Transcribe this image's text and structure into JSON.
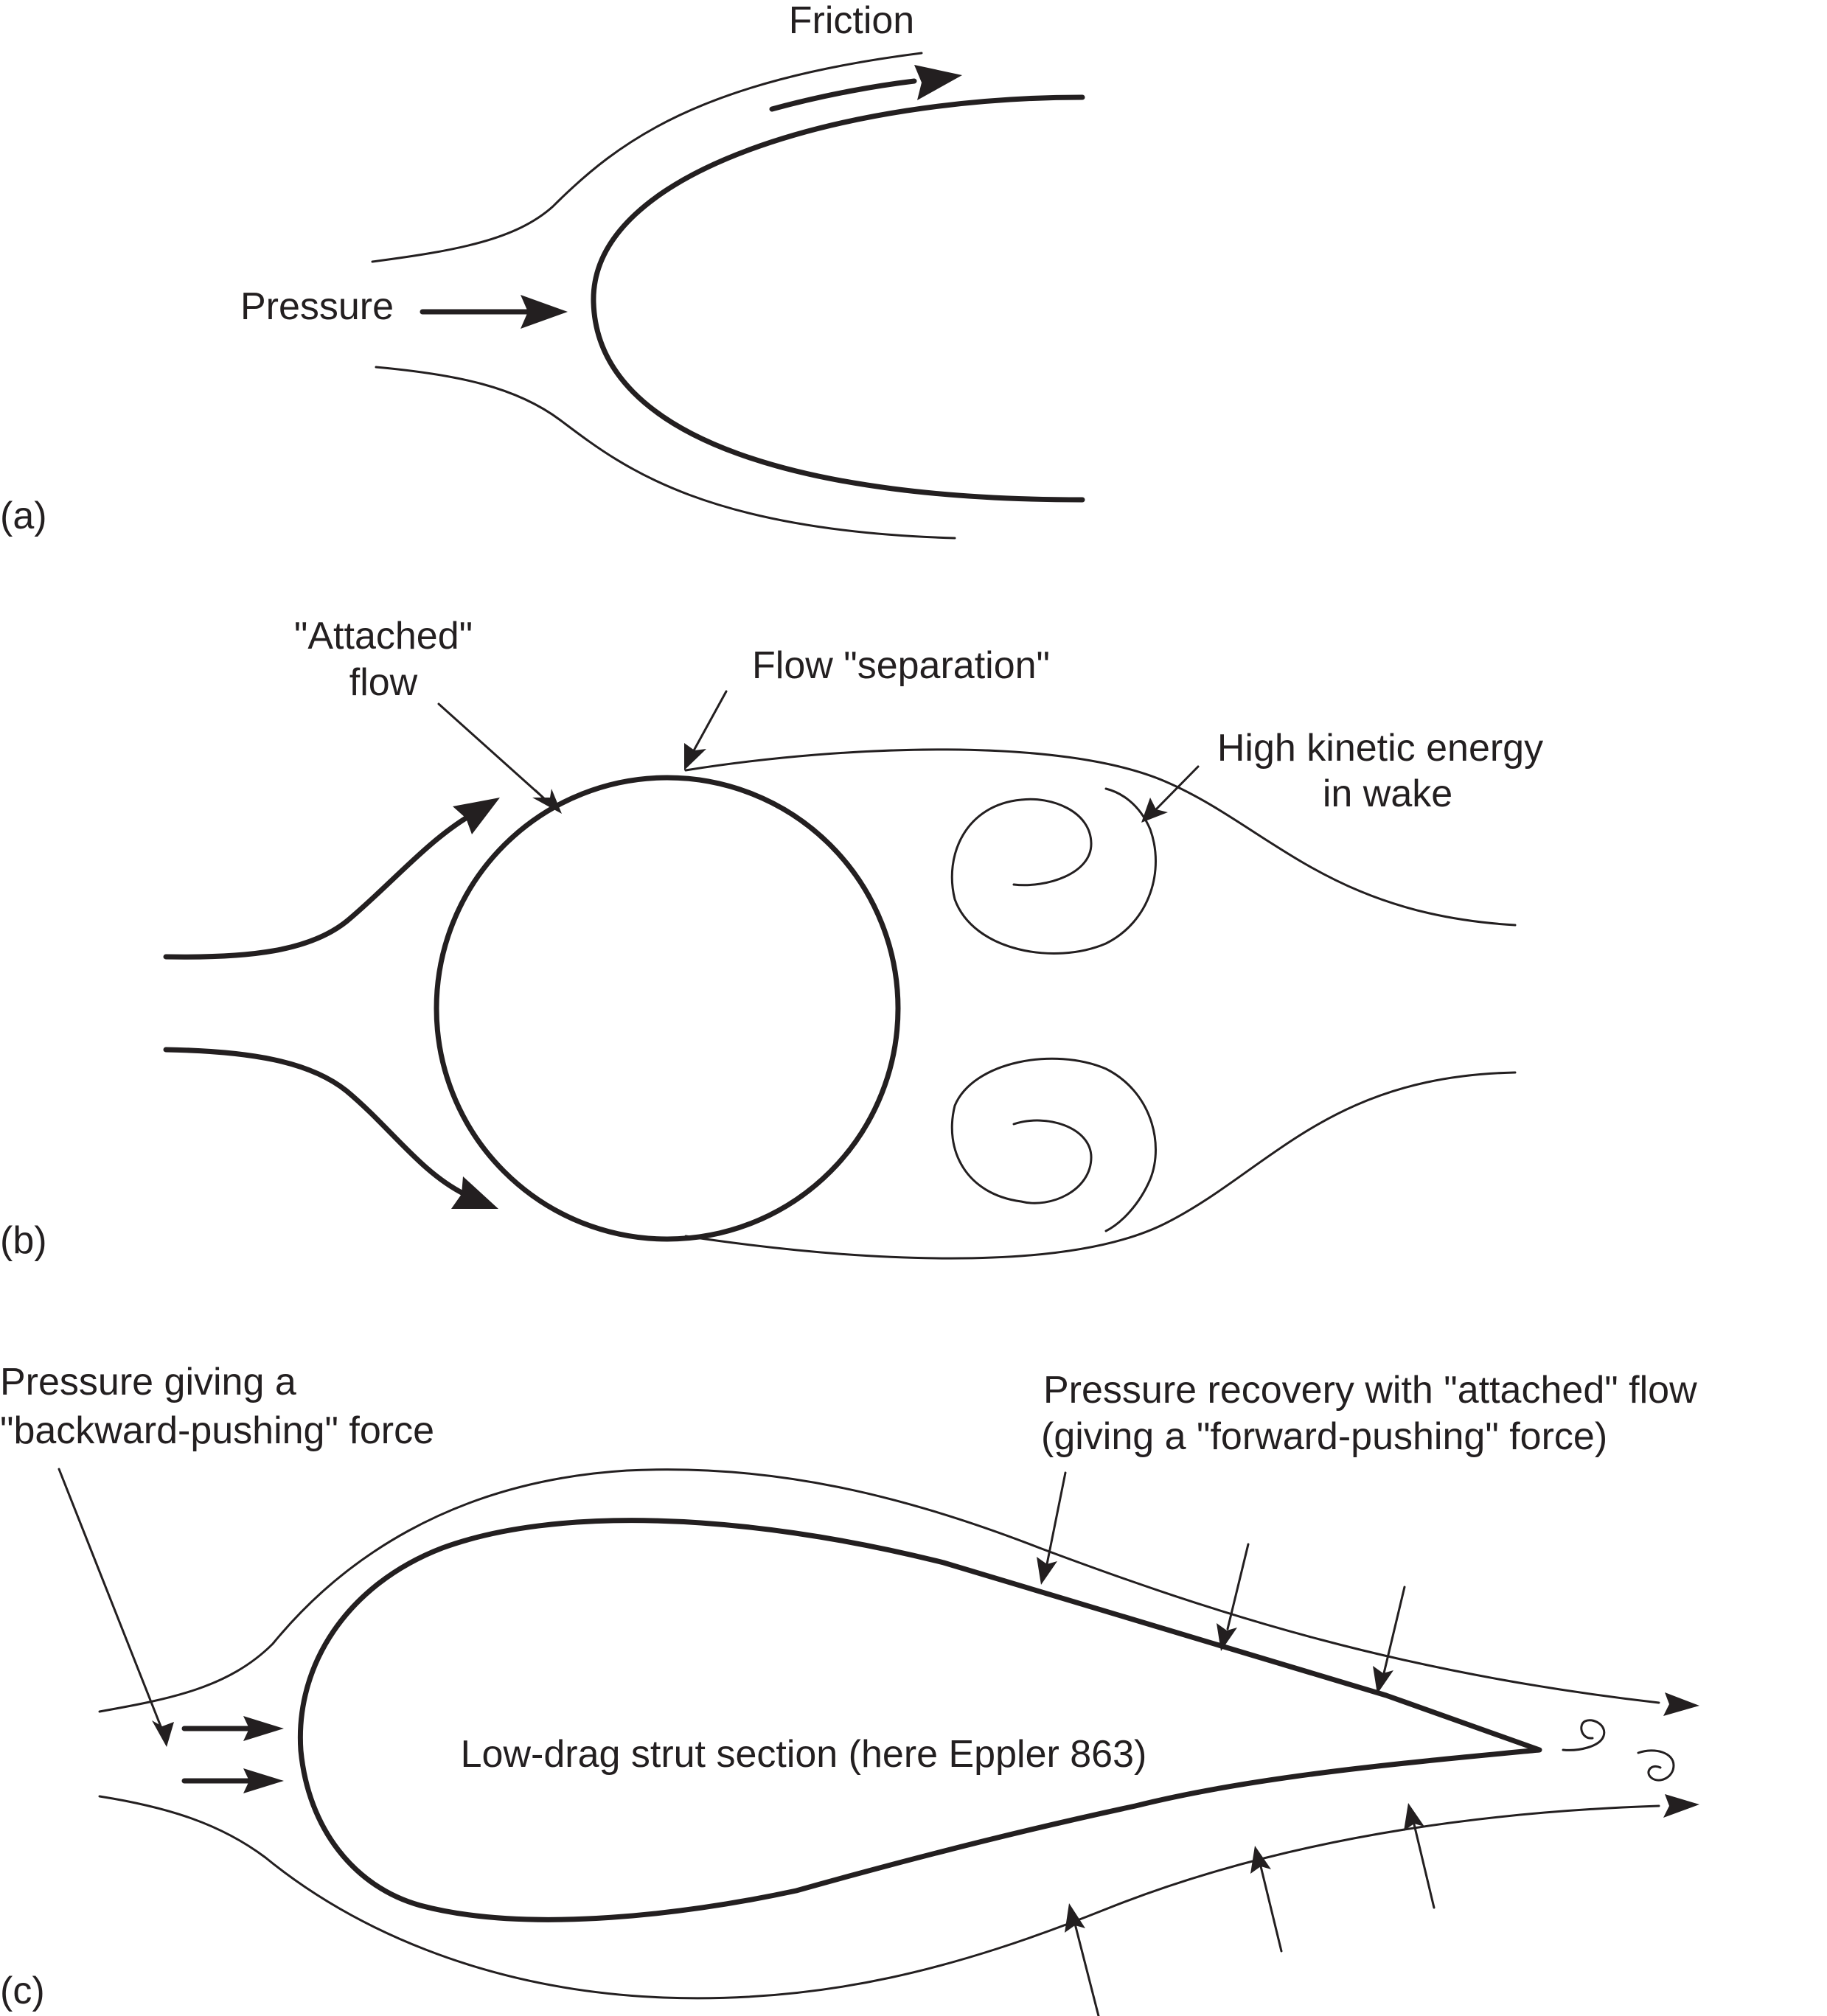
{
  "panels": {
    "a": {
      "tag": "(a)",
      "friction_label": "Friction",
      "pressure_label": "Pressure"
    },
    "b": {
      "tag": "(b)",
      "attached_label": [
        "\"Attached\"",
        "flow"
      ],
      "separation_label": "Flow \"separation\"",
      "wake_label": [
        "High kinetic energy",
        "in wake"
      ]
    },
    "c": {
      "tag": "(c)",
      "backward_label": [
        "Pressure giving a",
        "\"backward-pushing\" force"
      ],
      "recovery_label": [
        "Pressure recovery with \"attached\" flow",
        "(giving a \"forward-pushing\" force)"
      ],
      "section_label": "Low-drag strut section (here Eppler 863)"
    }
  },
  "colors": {
    "ink": "#231f20",
    "background": "#ffffff"
  }
}
